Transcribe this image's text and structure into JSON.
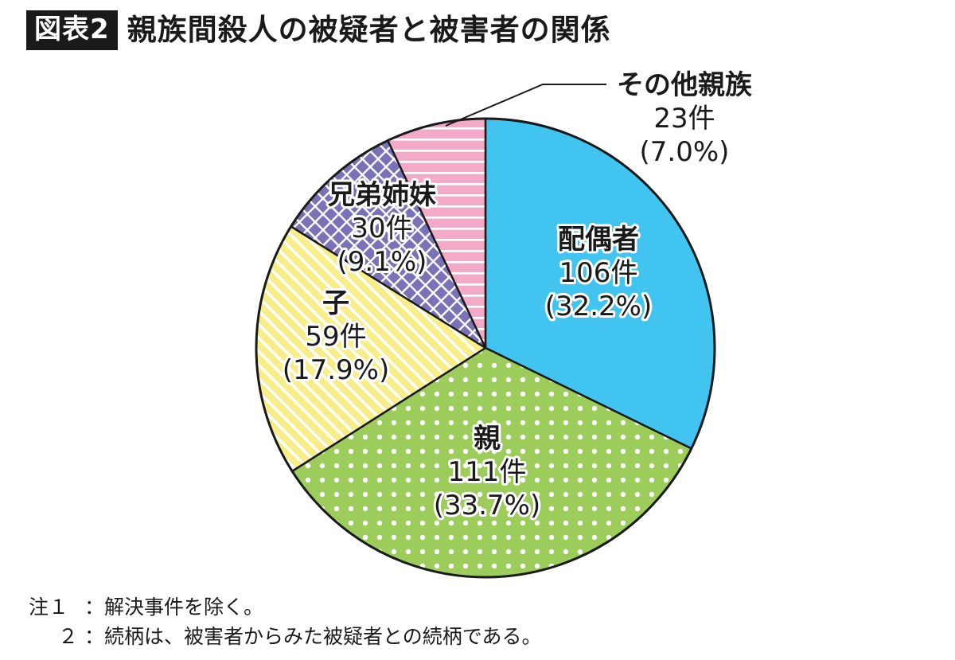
{
  "header": {
    "badge": "図表2",
    "title": "親族間殺人の被疑者と被害者の関係"
  },
  "chart_data": {
    "type": "pie",
    "title": "親族間殺人の被疑者と被害者の関係",
    "start_angle_deg": 0,
    "direction": "clockwise",
    "slices": [
      {
        "name": "配偶者",
        "count": "106件",
        "percent_label": "(32.2%)",
        "value": 32.2,
        "color": "#41c4f0",
        "pattern": "solid"
      },
      {
        "name": "親",
        "count": "111件",
        "percent_label": "(33.7%)",
        "value": 33.7,
        "color": "#9ccc5a",
        "pattern": "dots"
      },
      {
        "name": "子",
        "count": "59件",
        "percent_label": "(17.9%)",
        "value": 17.9,
        "color": "#f7ee8a",
        "pattern": "diagonal-stripes"
      },
      {
        "name": "兄弟姉妹",
        "count": "30件",
        "percent_label": "(9.1%)",
        "value": 9.1,
        "color": "#7a72b8",
        "pattern": "crosshatch"
      },
      {
        "name": "その他親族",
        "count": "23件",
        "percent_label": "(7.0%)",
        "value": 7.0,
        "color": "#f5a9c8",
        "pattern": "horizontal-stripes"
      }
    ]
  },
  "notes": [
    {
      "prefix": "注１",
      "text": "：解決事件を除く。"
    },
    {
      "prefix": "２",
      "text": "：続柄は、被害者からみた被疑者との続柄である。"
    }
  ]
}
